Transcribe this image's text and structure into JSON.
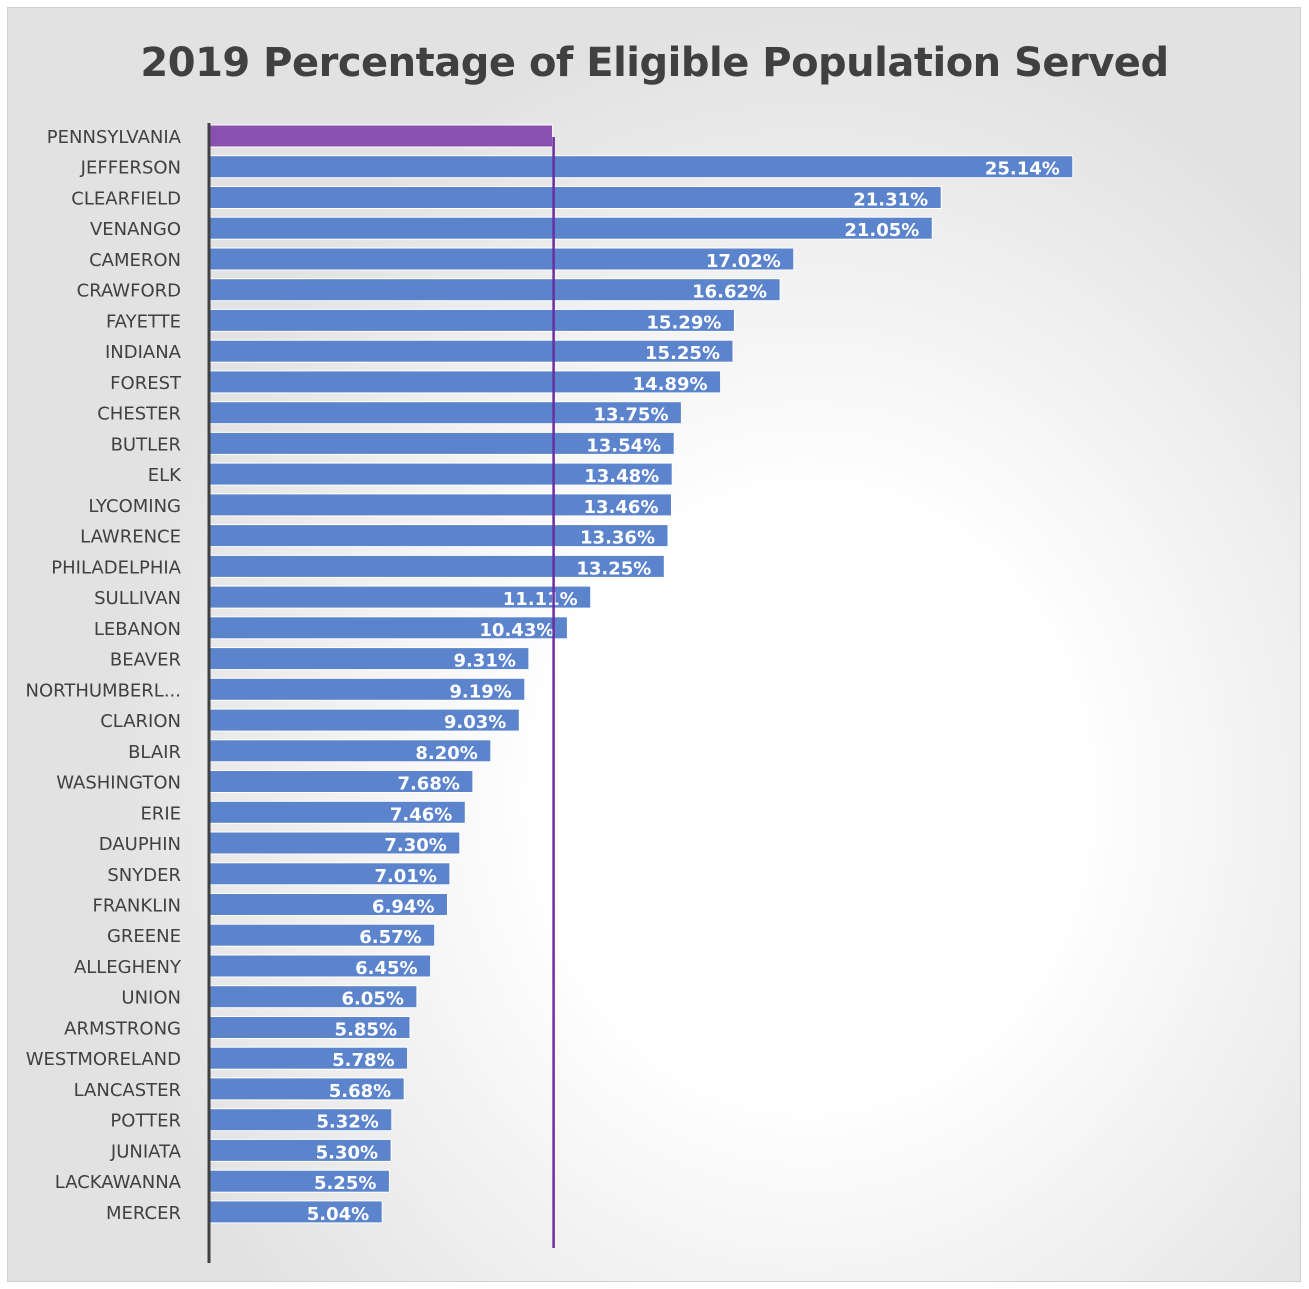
{
  "chart_data": {
    "type": "bar",
    "orientation": "horizontal",
    "title": "2019 Percentage of Eligible Population Served",
    "xlabel": "",
    "ylabel": "",
    "xlim": [
      0,
      27.5
    ],
    "grid": false,
    "legend": "none",
    "colors": {
      "bar": "#5b84cc",
      "highlight_bar": "#8950b0",
      "reference_line": "#6a2fa0",
      "axis": "#404040"
    },
    "reference_line": {
      "value": 10.0
    },
    "highlight": {
      "category": "PENNSYLVANIA",
      "value": 10.0
    },
    "categories": [
      "PENNSYLVANIA",
      "JEFFERSON",
      "CLEARFIELD",
      "VENANGO",
      "CAMERON",
      "CRAWFORD",
      "FAYETTE",
      "INDIANA",
      "FOREST",
      "CHESTER",
      "BUTLER",
      "ELK",
      "LYCOMING",
      "LAWRENCE",
      "PHILADELPHIA",
      "SULLIVAN",
      "LEBANON",
      "BEAVER",
      "NORTHUMBERL...",
      "CLARION",
      "BLAIR",
      "WASHINGTON",
      "ERIE",
      "DAUPHIN",
      "SNYDER",
      "FRANKLIN",
      "GREENE",
      "ALLEGHENY",
      "UNION",
      "ARMSTRONG",
      "WESTMORELAND",
      "LANCASTER",
      "POTTER",
      "JUNIATA",
      "LACKAWANNA",
      "MERCER"
    ],
    "values": [
      10.0,
      25.14,
      21.31,
      21.05,
      17.02,
      16.62,
      15.29,
      15.25,
      14.89,
      13.75,
      13.54,
      13.48,
      13.46,
      13.36,
      13.25,
      11.11,
      10.43,
      9.31,
      9.19,
      9.03,
      8.2,
      7.68,
      7.46,
      7.3,
      7.01,
      6.94,
      6.57,
      6.45,
      6.05,
      5.85,
      5.78,
      5.68,
      5.32,
      5.3,
      5.25,
      5.04
    ],
    "data_labels": [
      "",
      "25.14%",
      "21.31%",
      "21.05%",
      "17.02%",
      "16.62%",
      "15.29%",
      "15.25%",
      "14.89%",
      "13.75%",
      "13.54%",
      "13.48%",
      "13.46%",
      "13.36%",
      "13.25%",
      "11.11%",
      "10.43%",
      "9.31%",
      "9.19%",
      "9.03%",
      "8.20%",
      "7.68%",
      "7.46%",
      "7.30%",
      "7.01%",
      "6.94%",
      "6.57%",
      "6.45%",
      "6.05%",
      "5.85%",
      "5.78%",
      "5.68%",
      "5.32%",
      "5.30%",
      "5.25%",
      "5.04%"
    ]
  }
}
